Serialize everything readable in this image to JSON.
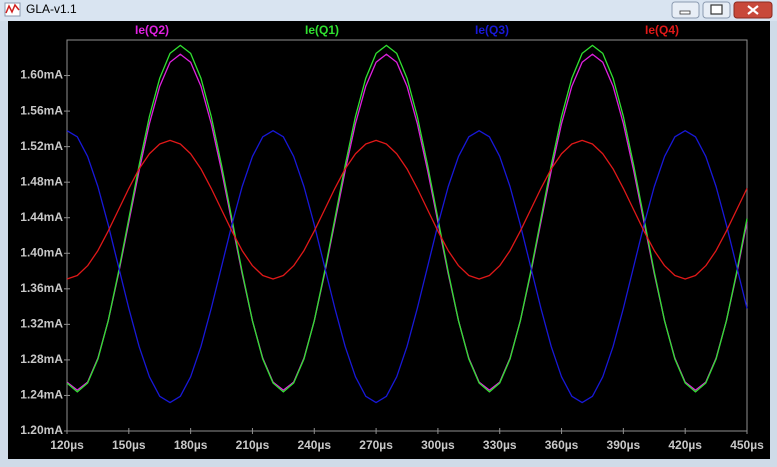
{
  "window_title": "GLA-v1.1",
  "chart_data": {
    "type": "line",
    "x": [
      120,
      125,
      130,
      135,
      140,
      145,
      150,
      155,
      160,
      165,
      170,
      175,
      180,
      185,
      190,
      195,
      200,
      205,
      210,
      215,
      220,
      225,
      230,
      235,
      240,
      245,
      250,
      255,
      260,
      265,
      270,
      275,
      280,
      285,
      290,
      295,
      300,
      305,
      310,
      315,
      320,
      325,
      330,
      335,
      340,
      345,
      350,
      355,
      360,
      365,
      370,
      375,
      380,
      385,
      390,
      395,
      400,
      405,
      410,
      415,
      420,
      425,
      430,
      435,
      440,
      445,
      450
    ],
    "series": [
      {
        "name": "Ie(Q2)",
        "color": "#e020e0",
        "values": [
          1.255,
          1.246,
          1.255,
          1.282,
          1.324,
          1.377,
          1.435,
          1.493,
          1.546,
          1.588,
          1.615,
          1.624,
          1.615,
          1.588,
          1.546,
          1.493,
          1.435,
          1.377,
          1.324,
          1.282,
          1.255,
          1.246,
          1.255,
          1.282,
          1.324,
          1.377,
          1.435,
          1.493,
          1.546,
          1.588,
          1.615,
          1.624,
          1.615,
          1.588,
          1.546,
          1.493,
          1.435,
          1.377,
          1.324,
          1.282,
          1.255,
          1.246,
          1.255,
          1.282,
          1.324,
          1.377,
          1.435,
          1.493,
          1.546,
          1.588,
          1.615,
          1.624,
          1.615,
          1.588,
          1.546,
          1.493,
          1.435,
          1.377,
          1.324,
          1.282,
          1.255,
          1.246,
          1.255,
          1.282,
          1.324,
          1.377,
          1.435
        ]
      },
      {
        "name": "Ie(Q1)",
        "color": "#30e030",
        "values": [
          1.254,
          1.244,
          1.254,
          1.281,
          1.324,
          1.379,
          1.439,
          1.499,
          1.554,
          1.597,
          1.625,
          1.634,
          1.625,
          1.597,
          1.554,
          1.499,
          1.439,
          1.379,
          1.324,
          1.281,
          1.254,
          1.244,
          1.254,
          1.281,
          1.324,
          1.379,
          1.439,
          1.499,
          1.554,
          1.597,
          1.625,
          1.634,
          1.625,
          1.597,
          1.554,
          1.499,
          1.439,
          1.379,
          1.324,
          1.281,
          1.254,
          1.244,
          1.254,
          1.281,
          1.324,
          1.379,
          1.439,
          1.499,
          1.554,
          1.597,
          1.625,
          1.634,
          1.625,
          1.597,
          1.554,
          1.499,
          1.439,
          1.379,
          1.324,
          1.281,
          1.254,
          1.244,
          1.254,
          1.281,
          1.324,
          1.379,
          1.439
        ]
      },
      {
        "name": "Ie(Q3)",
        "color": "#1818d8",
        "values": [
          1.538,
          1.531,
          1.509,
          1.475,
          1.432,
          1.385,
          1.338,
          1.295,
          1.261,
          1.239,
          1.232,
          1.239,
          1.261,
          1.295,
          1.338,
          1.385,
          1.432,
          1.475,
          1.509,
          1.531,
          1.538,
          1.531,
          1.509,
          1.475,
          1.432,
          1.385,
          1.338,
          1.295,
          1.261,
          1.239,
          1.232,
          1.239,
          1.261,
          1.295,
          1.338,
          1.385,
          1.432,
          1.475,
          1.509,
          1.531,
          1.538,
          1.531,
          1.509,
          1.475,
          1.432,
          1.385,
          1.338,
          1.295,
          1.261,
          1.239,
          1.232,
          1.239,
          1.261,
          1.295,
          1.338,
          1.385,
          1.432,
          1.475,
          1.509,
          1.531,
          1.538,
          1.531,
          1.509,
          1.475,
          1.432,
          1.385,
          1.338
        ]
      },
      {
        "name": "Ie(Q4)",
        "color": "#e01818",
        "values": [
          1.371,
          1.375,
          1.386,
          1.403,
          1.425,
          1.449,
          1.473,
          1.495,
          1.512,
          1.523,
          1.527,
          1.523,
          1.512,
          1.495,
          1.473,
          1.449,
          1.425,
          1.403,
          1.386,
          1.375,
          1.371,
          1.375,
          1.386,
          1.403,
          1.425,
          1.449,
          1.473,
          1.495,
          1.512,
          1.523,
          1.527,
          1.523,
          1.512,
          1.495,
          1.473,
          1.449,
          1.425,
          1.403,
          1.386,
          1.375,
          1.371,
          1.375,
          1.386,
          1.403,
          1.425,
          1.449,
          1.473,
          1.495,
          1.512,
          1.523,
          1.527,
          1.523,
          1.512,
          1.495,
          1.473,
          1.449,
          1.425,
          1.403,
          1.386,
          1.375,
          1.371,
          1.375,
          1.386,
          1.403,
          1.425,
          1.449,
          1.473
        ]
      }
    ],
    "xlim": [
      120,
      450
    ],
    "ylim": [
      1.2,
      1.64
    ],
    "xticks": [
      {
        "value": 120,
        "label": "120µs"
      },
      {
        "value": 150,
        "label": "150µs"
      },
      {
        "value": 180,
        "label": "180µs"
      },
      {
        "value": 210,
        "label": "210µs"
      },
      {
        "value": 240,
        "label": "240µs"
      },
      {
        "value": 270,
        "label": "270µs"
      },
      {
        "value": 300,
        "label": "300µs"
      },
      {
        "value": 330,
        "label": "330µs"
      },
      {
        "value": 360,
        "label": "360µs"
      },
      {
        "value": 390,
        "label": "390µs"
      },
      {
        "value": 420,
        "label": "420µs"
      },
      {
        "value": 450,
        "label": "450µs"
      }
    ],
    "yticks": [
      {
        "value": 1.2,
        "label": "1.20mA"
      },
      {
        "value": 1.24,
        "label": "1.24mA"
      },
      {
        "value": 1.28,
        "label": "1.28mA"
      },
      {
        "value": 1.32,
        "label": "1.32mA"
      },
      {
        "value": 1.36,
        "label": "1.36mA"
      },
      {
        "value": 1.4,
        "label": "1.40mA"
      },
      {
        "value": 1.44,
        "label": "1.44mA"
      },
      {
        "value": 1.48,
        "label": "1.48mA"
      },
      {
        "value": 1.52,
        "label": "1.52mA"
      },
      {
        "value": 1.56,
        "label": "1.56mA"
      },
      {
        "value": 1.6,
        "label": "1.60mA"
      }
    ],
    "grid": false
  }
}
